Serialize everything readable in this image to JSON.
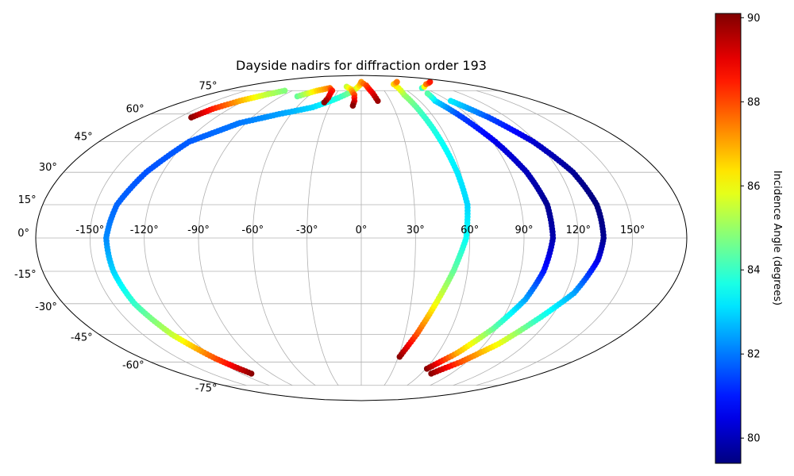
{
  "chart_data": {
    "type": "scatter",
    "projection": "mollweide",
    "title": "Dayside nadirs for diffraction order 193",
    "grid": true,
    "lon_ticks": [
      "-150°",
      "-120°",
      "-90°",
      "-60°",
      "-30°",
      "0°",
      "30°",
      "60°",
      "90°",
      "120°",
      "150°"
    ],
    "lat_ticks": [
      "75°",
      "60°",
      "45°",
      "30°",
      "15°",
      "0°",
      "-15°",
      "-30°",
      "-45°",
      "-60°",
      "-75°"
    ],
    "colorbar": {
      "label": "Incidence Angle (degrees)",
      "range": [
        79.4,
        90.1
      ],
      "ticks": [
        "80",
        "82",
        "84",
        "86",
        "88",
        "90"
      ],
      "colormap": "jet"
    },
    "series": [
      {
        "points": [
          [
            -110,
            -67,
            90
          ],
          [
            -120,
            -58,
            88
          ],
          [
            -130,
            -45,
            85.5
          ],
          [
            -137,
            -30,
            84
          ],
          [
            -140,
            -15,
            83
          ],
          [
            -141,
            0,
            82.2
          ],
          [
            -138,
            15,
            81.8
          ],
          [
            -130,
            30,
            81.6
          ],
          [
            -118,
            45,
            81.7
          ],
          [
            -95,
            55,
            82
          ],
          [
            -70,
            60,
            82.4
          ],
          [
            -45,
            64,
            83
          ],
          [
            -25,
            70,
            83.8
          ],
          [
            -10,
            75,
            85
          ],
          [
            -3,
            79,
            86.5
          ],
          [
            0,
            82,
            87.2
          ],
          [
            8,
            79,
            88
          ],
          [
            14,
            73,
            89
          ],
          [
            17,
            68,
            89.8
          ]
        ]
      },
      {
        "points": [
          [
            -140,
            58,
            90
          ],
          [
            -135,
            63,
            88.5
          ],
          [
            -125,
            68,
            87
          ],
          [
            -112,
            72,
            85.5
          ],
          [
            -100,
            75,
            84.8
          ]
        ]
      },
      {
        "points": [
          [
            -72,
            71,
            84.5
          ],
          [
            -58,
            75,
            86.5
          ],
          [
            -45,
            77,
            87.5
          ],
          [
            -38,
            75,
            88.5
          ],
          [
            -36,
            70,
            89.2
          ],
          [
            -37,
            67,
            90
          ]
        ]
      },
      {
        "points": [
          [
            -22,
            78,
            85.5
          ],
          [
            -14,
            76,
            86.5
          ],
          [
            -8,
            72,
            88
          ],
          [
            -7,
            68,
            89
          ],
          [
            -8,
            65,
            90
          ]
        ]
      },
      {
        "points": [
          [
            31,
            -57,
            90
          ],
          [
            38,
            -45,
            88
          ],
          [
            45,
            -30,
            86
          ],
          [
            52,
            -15,
            84.5
          ],
          [
            58,
            0,
            83.5
          ],
          [
            60,
            15,
            83
          ],
          [
            58,
            30,
            83.2
          ],
          [
            55,
            45,
            83.5
          ],
          [
            52,
            60,
            84
          ],
          [
            50,
            72,
            85
          ],
          [
            55,
            80,
            86.5
          ],
          [
            70,
            82,
            87.5
          ]
        ]
      },
      {
        "points": [
          [
            61,
            -64,
            90
          ],
          [
            75,
            -55,
            87
          ],
          [
            88,
            -42,
            84.5
          ],
          [
            98,
            -28,
            82.5
          ],
          [
            103,
            -15,
            81
          ],
          [
            106,
            0,
            79.9
          ],
          [
            105,
            15,
            79.6
          ],
          [
            100,
            30,
            80
          ],
          [
            92,
            45,
            80.5
          ],
          [
            82,
            60,
            81.5
          ],
          [
            76,
            68,
            83
          ],
          [
            80,
            73,
            84.3
          ]
        ]
      },
      {
        "points": [
          [
            70,
            -67,
            90
          ],
          [
            85,
            -60,
            88
          ],
          [
            100,
            -50,
            86
          ],
          [
            112,
            -38,
            84
          ],
          [
            125,
            -25,
            82.5
          ],
          [
            132,
            -10,
            80.5
          ],
          [
            134,
            0,
            79.6
          ],
          [
            133,
            15,
            79.4
          ],
          [
            128,
            30,
            79.6
          ],
          [
            118,
            45,
            80.2
          ],
          [
            105,
            58,
            81.5
          ],
          [
            92,
            68,
            83.2
          ]
        ]
      },
      {
        "points": [
          [
            87,
            77,
            84
          ],
          [
            95,
            78,
            86
          ],
          [
            110,
            80,
            87.5
          ],
          [
            135,
            82,
            88.5
          ]
        ]
      }
    ]
  }
}
